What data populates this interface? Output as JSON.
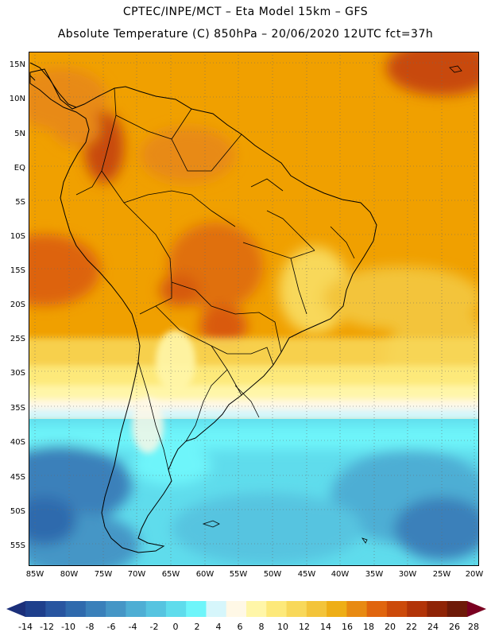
{
  "header": {
    "line1": "CPTEC/INPE/MCT –  Eta Model 15km – GFS",
    "line2": "Absolute Temperature (C) 850hPa – 20/06/2020 12UTC fct=37h"
  },
  "axes": {
    "lat_labels": [
      "15N",
      "10N",
      "5N",
      "EQ",
      "5S",
      "10S",
      "15S",
      "20S",
      "25S",
      "30S",
      "35S",
      "40S",
      "45S",
      "50S",
      "55S"
    ],
    "lon_labels": [
      "85W",
      "80W",
      "75W",
      "70W",
      "65W",
      "60W",
      "55W",
      "50W",
      "45W",
      "40W",
      "35W",
      "30W",
      "25W",
      "20W"
    ]
  },
  "colorbar": {
    "labels": [
      "-14",
      "-12",
      "-10",
      "-8",
      "-6",
      "-4",
      "-2",
      "0",
      "2",
      "4",
      "6",
      "8",
      "10",
      "12",
      "14",
      "16",
      "18",
      "20",
      "22",
      "24",
      "26",
      "28"
    ],
    "colors": [
      "#1e3f8c",
      "#2855a0",
      "#2f6aad",
      "#3a80ba",
      "#4596c6",
      "#4eaed4",
      "#56c4e0",
      "#5fdcec",
      "#6ef5fa",
      "#d6f6fb",
      "#fff8e6",
      "#fff6a8",
      "#fde97a",
      "#f8d85a",
      "#f3c43a",
      "#eeae16",
      "#e88a12",
      "#e0650e",
      "#cc4a0a",
      "#b23408",
      "#8f2406",
      "#6e1a08"
    ],
    "under_color": "#1b2f7a",
    "over_color": "#7a0020"
  },
  "map": {
    "region": "South America",
    "background_color": "#f0a000",
    "grid": "dotted"
  }
}
